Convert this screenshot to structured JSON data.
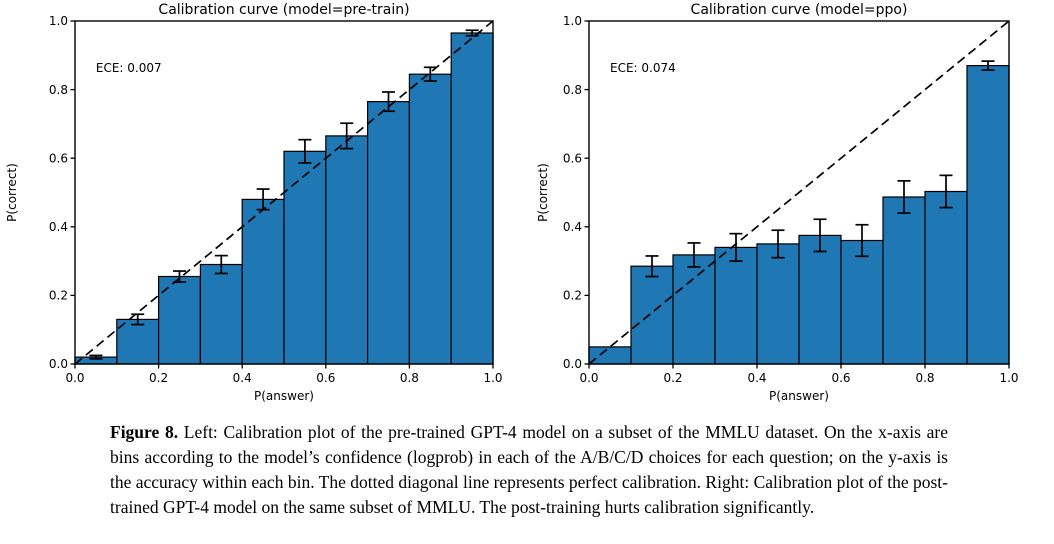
{
  "figure": {
    "caption_label": "Figure 8.",
    "caption_text": "Left: Calibration plot of the pre-trained GPT-4 model on a subset of the MMLU dataset. On the x-axis are bins according to the model’s confidence (logprob) in each of the A/B/C/D choices for each question; on the y-axis is the accuracy within each bin. The dotted diagonal line represents perfect calibration. Right: Calibration plot of the post-trained GPT-4 model on the same subset of MMLU. The post-training hurts calibration significantly."
  },
  "colors": {
    "bar_fill": "#1f77b4",
    "bar_edge": "#000000",
    "diagonal": "#000000",
    "axis": "#000000",
    "text": "#000000",
    "background": "#ffffff"
  },
  "chart_data": [
    {
      "type": "bar",
      "title": "Calibration curve (model=pre-train)",
      "annotation": "ECE: 0.007",
      "xlabel": "P(answer)",
      "ylabel": "P(correct)",
      "xlim": [
        0.0,
        1.0
      ],
      "ylim": [
        0.0,
        1.0
      ],
      "grid": false,
      "diagonal_reference_line": true,
      "xtick_labels": [
        "0.0",
        "0.2",
        "0.4",
        "0.6",
        "0.8",
        "1.0"
      ],
      "ytick_labels": [
        "0.0",
        "0.2",
        "0.4",
        "0.6",
        "0.8",
        "1.0"
      ],
      "xticks": [
        0.0,
        0.2,
        0.4,
        0.6,
        0.8,
        1.0
      ],
      "yticks": [
        0.0,
        0.2,
        0.4,
        0.6,
        0.8,
        1.0
      ],
      "bin_edges": [
        0.0,
        0.1,
        0.2,
        0.3,
        0.4,
        0.5,
        0.6,
        0.7,
        0.8,
        0.9,
        1.0
      ],
      "values": [
        0.02,
        0.13,
        0.255,
        0.29,
        0.48,
        0.62,
        0.665,
        0.765,
        0.845,
        0.965
      ],
      "errors": [
        0.005,
        0.015,
        0.016,
        0.026,
        0.03,
        0.034,
        0.037,
        0.028,
        0.02,
        0.008
      ]
    },
    {
      "type": "bar",
      "title": "Calibration curve (model=ppo)",
      "annotation": "ECE: 0.074",
      "xlabel": "P(answer)",
      "ylabel": "P(correct)",
      "xlim": [
        0.0,
        1.0
      ],
      "ylim": [
        0.0,
        1.0
      ],
      "grid": false,
      "diagonal_reference_line": true,
      "xtick_labels": [
        "0.0",
        "0.2",
        "0.4",
        "0.6",
        "0.8",
        "1.0"
      ],
      "ytick_labels": [
        "0.0",
        "0.2",
        "0.4",
        "0.6",
        "0.8",
        "1.0"
      ],
      "xticks": [
        0.0,
        0.2,
        0.4,
        0.6,
        0.8,
        1.0
      ],
      "yticks": [
        0.0,
        0.2,
        0.4,
        0.6,
        0.8,
        1.0
      ],
      "bin_edges": [
        0.0,
        0.1,
        0.2,
        0.3,
        0.4,
        0.5,
        0.6,
        0.7,
        0.8,
        0.9,
        1.0
      ],
      "values": [
        0.05,
        0.285,
        0.318,
        0.34,
        0.35,
        0.375,
        0.36,
        0.487,
        0.503,
        0.87
      ],
      "errors": [
        0,
        0.03,
        0.035,
        0.04,
        0.04,
        0.047,
        0.046,
        0.047,
        0.047,
        0.013
      ]
    }
  ]
}
